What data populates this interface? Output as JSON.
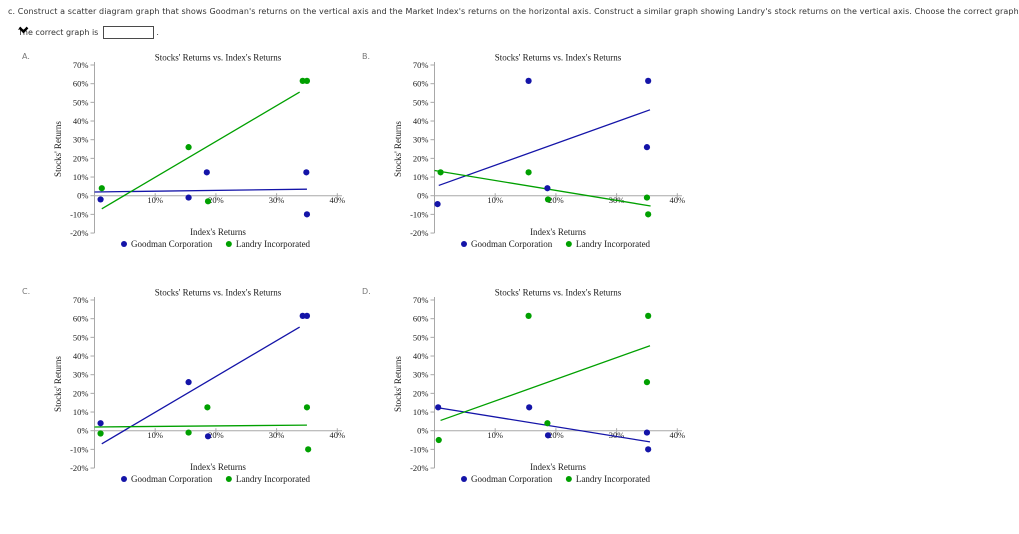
{
  "question": {
    "text": "c. Construct a scatter diagram graph that shows Goodman's returns on the vertical axis and the Market Index's returns on the horizontal axis. Construct a similar graph showing Landry's stock returns on the vertical axis. Choose the correct graph.",
    "prompt": "The correct graph is",
    "suffix": ".",
    "dropdown": {
      "value": "",
      "icon": "chevron-down"
    }
  },
  "colors": {
    "goodman_blue": "#1414a8",
    "landry_green": "#00a000",
    "axis_gray": "#a8a8a8",
    "text_dark": "#1a1a1a"
  },
  "legend": {
    "series1": "Goodman Corporation",
    "series2": "Landry Incorporated",
    "position": "bottom"
  },
  "chart_data": [
    {
      "id": "A",
      "corner_label": "A.",
      "type": "scatter",
      "title": "Stocks' Returns vs. Index's Returns",
      "xlabel": "Index's Returns",
      "ylabel": "Stocks' Returns",
      "xlim": [
        0,
        42
      ],
      "ylim": [
        -20,
        70
      ],
      "grid": false,
      "x_ticks": [
        "10%",
        "20%",
        "30%",
        "40%"
      ],
      "y_ticks": [
        "70%",
        "60%",
        "50%",
        "40%",
        "30%",
        "20%",
        "10%",
        "0%",
        "-10%",
        "-20%"
      ],
      "series": [
        {
          "name": "Goodman Corporation",
          "color": "#1414a8",
          "points": [
            [
              1,
              -2
            ],
            [
              15.5,
              -1
            ],
            [
              18.5,
              12.5
            ],
            [
              34.9,
              12.5
            ],
            [
              35,
              -10
            ]
          ],
          "trendline": [
            [
              0,
              2
            ],
            [
              35,
              3.5
            ]
          ]
        },
        {
          "name": "Landry Incorporated",
          "color": "#00a000",
          "points": [
            [
              1.2,
              4
            ],
            [
              15.5,
              26
            ],
            [
              18.7,
              -3
            ],
            [
              34.3,
              61.5
            ],
            [
              35.0,
              61.5
            ]
          ],
          "trendline": [
            [
              1.2,
              -7
            ],
            [
              33.8,
              55.5
            ]
          ]
        }
      ]
    },
    {
      "id": "B",
      "corner_label": "B.",
      "type": "scatter",
      "title": "Stocks' Returns vs. Index's Returns",
      "xlabel": "Index's Returns",
      "ylabel": "Stocks' Returns",
      "xlim": [
        0,
        42
      ],
      "ylim": [
        -20,
        70
      ],
      "grid": false,
      "x_ticks": [
        "10%",
        "20%",
        "30%",
        "40%"
      ],
      "y_ticks": [
        "70%",
        "60%",
        "50%",
        "40%",
        "30%",
        "20%",
        "10%",
        "0%",
        "-10%",
        "-20%"
      ],
      "series": [
        {
          "name": "Goodman Corporation",
          "color": "#1414a8",
          "points": [
            [
              0.5,
              -4.5
            ],
            [
              15.5,
              61.5
            ],
            [
              18.6,
              4
            ],
            [
              35.2,
              61.5
            ],
            [
              35,
              26
            ]
          ],
          "trendline": [
            [
              0.7,
              5.5
            ],
            [
              35.5,
              46
            ]
          ]
        },
        {
          "name": "Landry Incorporated",
          "color": "#00a000",
          "points": [
            [
              1,
              12.5
            ],
            [
              15.5,
              12.5
            ],
            [
              18.7,
              -2
            ],
            [
              35,
              -1
            ],
            [
              35.2,
              -10
            ]
          ],
          "trendline": [
            [
              0,
              13.5
            ],
            [
              35.6,
              -5.5
            ]
          ]
        }
      ]
    },
    {
      "id": "C",
      "corner_label": "C.",
      "type": "scatter",
      "title": "Stocks' Returns vs. Index's Returns",
      "xlabel": "Index's Returns",
      "ylabel": "Stocks' Returns",
      "xlim": [
        0,
        42
      ],
      "ylim": [
        -20,
        70
      ],
      "grid": false,
      "x_ticks": [
        "10%",
        "20%",
        "30%",
        "40%"
      ],
      "y_ticks": [
        "70%",
        "60%",
        "50%",
        "40%",
        "30%",
        "20%",
        "10%",
        "0%",
        "-10%",
        "-20%"
      ],
      "series": [
        {
          "name": "Goodman Corporation",
          "color": "#1414a8",
          "points": [
            [
              1,
              4
            ],
            [
              15.5,
              26
            ],
            [
              18.7,
              -3
            ],
            [
              34.3,
              61.5
            ],
            [
              35.0,
              61.5
            ]
          ],
          "trendline": [
            [
              1.2,
              -7
            ],
            [
              33.8,
              55.5
            ]
          ]
        },
        {
          "name": "Landry Incorporated",
          "color": "#00a000",
          "points": [
            [
              1,
              -1.5
            ],
            [
              15.5,
              -1
            ],
            [
              18.6,
              12.5
            ],
            [
              35,
              12.5
            ],
            [
              35.2,
              -10
            ]
          ],
          "trendline": [
            [
              0,
              2
            ],
            [
              35,
              3
            ]
          ]
        }
      ]
    },
    {
      "id": "D",
      "corner_label": "D.",
      "type": "scatter",
      "title": "Stocks' Returns vs. Index's Returns",
      "xlabel": "Index's Returns",
      "ylabel": "Stocks' Returns",
      "xlim": [
        0,
        42
      ],
      "ylim": [
        -20,
        70
      ],
      "grid": false,
      "x_ticks": [
        "10%",
        "20%",
        "30%",
        "40%"
      ],
      "y_ticks": [
        "70%",
        "60%",
        "50%",
        "40%",
        "30%",
        "20%",
        "10%",
        "0%",
        "-10%",
        "-20%"
      ],
      "series": [
        {
          "name": "Goodman Corporation",
          "color": "#1414a8",
          "points": [
            [
              0.6,
              12.5
            ],
            [
              15.6,
              12.5
            ],
            [
              18.7,
              -2.5
            ],
            [
              35,
              -1
            ],
            [
              35.2,
              -10
            ]
          ],
          "trendline": [
            [
              0.2,
              12.5
            ],
            [
              35.5,
              -6
            ]
          ]
        },
        {
          "name": "Landry Incorporated",
          "color": "#00a000",
          "points": [
            [
              0.7,
              -5
            ],
            [
              15.5,
              61.5
            ],
            [
              18.6,
              4
            ],
            [
              35.2,
              61.5
            ],
            [
              35,
              26
            ]
          ],
          "trendline": [
            [
              1,
              5.5
            ],
            [
              35.5,
              45.5
            ]
          ]
        }
      ]
    }
  ]
}
